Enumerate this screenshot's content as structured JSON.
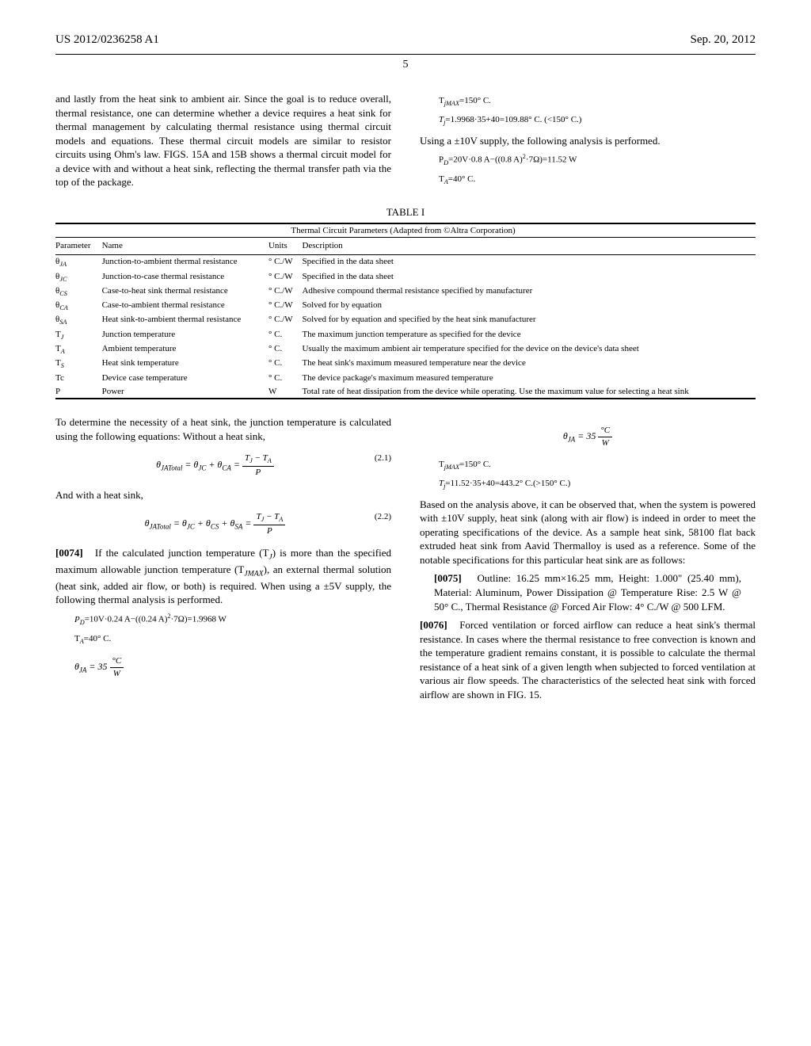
{
  "header": {
    "left": "US 2012/0236258 A1",
    "right": "Sep. 20, 2012"
  },
  "page_number": "5",
  "left_col": {
    "intro": "and lastly from the heat sink to ambient air. Since the goal is to reduce overall, thermal resistance, one can determine whether a device requires a heat sink for thermal management by calculating thermal resistance using thermal circuit models and equations. These thermal circuit models are similar to resistor circuits using Ohm's law. FIGS. 15A and 15B shows a thermal circuit model for a device with and without a heat sink, reflecting the thermal transfer path via the top of the package.",
    "after_table": "To determine the necessity of a heat sink, the junction temperature is calculated using the following equations: Without a heat sink,",
    "eq21": "θ_{JATotal} = θ_{JC} + θ_{CA} = (T_J − T_A) / P",
    "eq21num": "(2.1)",
    "with_hs": "And with a heat sink,",
    "eq22": "θ_{JATotal} = θ_{JC} + θ_{CS} + θ_{SA} = (T_J − T_A) / P",
    "eq22num": "(2.2)",
    "para74num": "[0074]",
    "para74": "If the calculated junction temperature (T_J) is more than the specified maximum allowable junction temperature (T_{JMAX}), an external thermal solution (heat sink, added air flow, or both) is required. When using a ±5V supply, the following thermal analysis is performed.",
    "pd1": "P_D=10V·0.24 A−((0.24 A)²·7Ω)=1.9968 W",
    "ta1": "T_A=40° C.",
    "thetaJA1": "θ_{JA} = 35 °C/W"
  },
  "right_col": {
    "tjmax1": "T_{jMAX}=150° C.",
    "tj1": "T_j=1.9968·35+40=109.88° C. (<150° C.)",
    "using10": "Using a ±10V supply, the following analysis is performed.",
    "pd2": "P_D=20V·0.8 A−((0.8 A)²·7Ω)=11.52 W",
    "ta2": "T_A=40° C.",
    "thetaJA2": "θ_{JA} = 35 °C/W",
    "tjmax2": "T_{jMAX}=150° C.",
    "tj2": "T_j=11.52·35+40=443.2° C.(>150° C.)",
    "based_on": "Based on the analysis above, it can be observed that, when the system is powered with ±10V supply, heat sink (along with air flow) is indeed in order to meet the operating specifications of the device. As a sample heat sink, 58100 flat back extruded heat sink from Aavid Thermalloy is used as a reference. Some of the notable specifications for this particular heat sink are as follows:",
    "para75num": "[0075]",
    "para75": "Outline: 16.25 mm×16.25 mm, Height: 1.000\" (25.40 mm), Material: Aluminum, Power Dissipation @ Temperature Rise: 2.5 W @ 50° C., Thermal Resistance @ Forced Air Flow: 4° C./W @ 500 LFM.",
    "para76num": "[0076]",
    "para76": "Forced ventilation or forced airflow can reduce a heat sink's thermal resistance. In cases where the thermal resistance to free convection is known and the temperature gradient remains constant, it is possible to calculate the thermal resistance of a heat sink of a given length when subjected to forced ventilation at various air flow speeds. The characteristics of the selected heat sink with forced airflow are shown in FIG. 15."
  },
  "table": {
    "title": "TABLE I",
    "subtitle": "Thermal Circuit Parameters (Adapted from ©Altra Corporation)",
    "columns": [
      "Parameter",
      "Name",
      "Units",
      "Description"
    ],
    "rows": [
      [
        "θ_{JA}",
        "Junction-to-ambient thermal resistance",
        "° C./W",
        "Specified in the data sheet"
      ],
      [
        "θ_{JC}",
        "Junction-to-case thermal resistance",
        "° C./W",
        "Specified in the data sheet"
      ],
      [
        "θ_{CS}",
        "Case-to-heat sink thermal resistance",
        "° C./W",
        "Adhesive compound thermal resistance specified by manufacturer"
      ],
      [
        "θ_{CA}",
        "Case-to-ambient thermal resistance",
        "° C./W",
        "Solved for by equation"
      ],
      [
        "θ_{SA}",
        "Heat sink-to-ambient thermal resistance",
        "° C./W",
        "Solved for by equation and specified by the heat sink manufacturer"
      ],
      [
        "T_J",
        "Junction temperature",
        "° C.",
        "The maximum junction temperature as specified for the device"
      ],
      [
        "T_A",
        "Ambient temperature",
        "° C.",
        "Usually the maximum ambient air temperature specified for the device on the device's data sheet"
      ],
      [
        "T_S",
        "Heat sink temperature",
        "° C.",
        "The heat sink's maximum measured temperature near the device"
      ],
      [
        "Tc",
        "Device case temperature",
        "° C.",
        "The device package's maximum measured temperature"
      ],
      [
        "P",
        "Power",
        "W",
        "Total rate of heat dissipation from the device while operating. Use the maximum value for selecting a heat sink"
      ]
    ]
  }
}
